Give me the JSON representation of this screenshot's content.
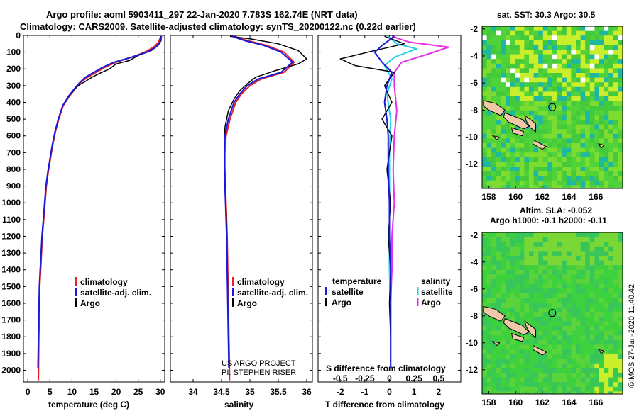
{
  "header": {
    "line1": "Argo profile: aoml 5903411_297 22-Jan-2020 7.783S 162.74E (NRT data)",
    "line2": "Climatology: CARS2009. Satellite-adjusted climatology: synTS_20200122.nc (0.22d earlier)"
  },
  "colors": {
    "climatology": "#e8202a",
    "satellite": "#1a1adc",
    "argo": "#000000",
    "sat_salinity": "#22d4e6",
    "argo_salinity": "#e52ee5",
    "ocean_green": "#3ed13e",
    "land": "#f0c8a8"
  },
  "chart_data": [
    {
      "type": "line",
      "title": "",
      "xlabel": "temperature (deg C)",
      "ylabel": "",
      "xlim": [
        -1,
        31
      ],
      "ylim": [
        2070,
        0
      ],
      "xticks": [
        "0",
        "5",
        "10",
        "15",
        "20",
        "25",
        "30"
      ],
      "yticks": [
        "0",
        "100",
        "200",
        "300",
        "400",
        "500",
        "600",
        "700",
        "800",
        "900",
        "1000",
        "1100",
        "1200",
        "1300",
        "1400",
        "1500",
        "1600",
        "1700",
        "1800",
        "1900",
        "2000"
      ],
      "legend": [
        "climatology",
        "satellite-adj. clim.",
        "Argo"
      ],
      "series": [
        {
          "name": "climatology",
          "x": [
            30.1,
            29.6,
            28.5,
            26.5,
            23.5,
            20,
            17.5,
            15.5,
            13.5,
            12,
            11,
            9.5,
            8,
            7,
            6.2,
            5.6,
            5.1,
            4.6,
            4.2,
            3.9,
            3.6,
            3.3,
            3.1,
            2.9,
            2.7,
            2.6,
            2.5,
            2.4
          ],
          "y": [
            5,
            40,
            70,
            100,
            130,
            160,
            190,
            220,
            250,
            280,
            310,
            360,
            420,
            500,
            580,
            660,
            740,
            820,
            900,
            1000,
            1100,
            1200,
            1300,
            1400,
            1500,
            1650,
            1800,
            2060
          ]
        },
        {
          "name": "satellite-adj. clim.",
          "x": [
            30.3,
            29.9,
            29,
            27,
            23.5,
            19.5,
            17,
            15,
            13,
            11.8,
            10.8,
            9.3,
            7.9,
            6.9,
            6.1,
            5.5,
            5,
            4.5,
            4.1,
            3.8,
            3.5,
            3.2,
            3,
            2.8,
            2.6,
            2.5,
            2.4,
            2.3
          ],
          "y": [
            5,
            40,
            70,
            100,
            130,
            160,
            190,
            220,
            250,
            280,
            310,
            360,
            420,
            500,
            580,
            660,
            740,
            820,
            900,
            1000,
            1100,
            1200,
            1300,
            1400,
            1500,
            1650,
            1800,
            1990
          ]
        },
        {
          "name": "Argo",
          "x": [
            30.2,
            30.2,
            29.5,
            28,
            25,
            23,
            20,
            18.5,
            16,
            14.5,
            13,
            12,
            11,
            9.4,
            7.9,
            6.9,
            6.1,
            5.5,
            5,
            4.5,
            4.1,
            3.8,
            3.5,
            3.2,
            3,
            2.8,
            2.6,
            2.5,
            2.4,
            2.3
          ],
          "y": [
            5,
            30,
            60,
            90,
            120,
            150,
            170,
            200,
            230,
            250,
            275,
            290,
            310,
            360,
            420,
            500,
            580,
            660,
            740,
            820,
            900,
            1000,
            1100,
            1200,
            1300,
            1400,
            1500,
            1650,
            1800,
            1990
          ]
        }
      ]
    },
    {
      "type": "line",
      "title": "",
      "xlabel": "salinity",
      "ylabel": "",
      "xlim": [
        33.6,
        36.1
      ],
      "ylim": [
        2070,
        0
      ],
      "xticks": [
        "34",
        "34.5",
        "35",
        "35.5",
        "36"
      ],
      "legend": [
        "climatology",
        "satellite-adj. clim.",
        "Argo"
      ],
      "annotations": [
        "US ARGO PROJECT",
        "PI: STEPHEN RISER"
      ],
      "series": [
        {
          "name": "climatology",
          "x": [
            34.72,
            34.95,
            35.3,
            35.6,
            35.78,
            35.6,
            35.2,
            35.0,
            34.85,
            34.75,
            34.65,
            34.58,
            34.56,
            34.56,
            34.57,
            34.58,
            34.6,
            34.61,
            34.62,
            34.63,
            34.64,
            34.64
          ],
          "y": [
            5,
            30,
            60,
            100,
            160,
            220,
            260,
            300,
            350,
            400,
            500,
            600,
            700,
            800,
            900,
            1000,
            1200,
            1400,
            1600,
            1800,
            1950,
            2060
          ]
        },
        {
          "name": "satellite-adj. clim.",
          "x": [
            34.68,
            34.9,
            35.25,
            35.55,
            35.75,
            35.55,
            35.15,
            34.95,
            34.82,
            34.72,
            34.62,
            34.56,
            34.55,
            34.55,
            34.56,
            34.57,
            34.59,
            34.6,
            34.61,
            34.62,
            34.63
          ],
          "y": [
            5,
            30,
            60,
            100,
            160,
            220,
            260,
            300,
            350,
            400,
            500,
            600,
            700,
            800,
            900,
            1000,
            1200,
            1400,
            1600,
            1800,
            1990
          ]
        },
        {
          "name": "Argo",
          "x": [
            34.65,
            35.0,
            35.5,
            35.85,
            36.0,
            35.85,
            35.45,
            35.1,
            34.95,
            34.82,
            34.72,
            34.62,
            34.56,
            34.55,
            34.55,
            34.56,
            34.57,
            34.59,
            34.6,
            34.61,
            34.62,
            34.63
          ],
          "y": [
            5,
            20,
            50,
            90,
            140,
            170,
            210,
            250,
            290,
            330,
            380,
            450,
            550,
            650,
            750,
            850,
            950,
            1150,
            1350,
            1550,
            1800,
            1990
          ]
        }
      ]
    },
    {
      "type": "line",
      "title": "",
      "xlabel": "T difference from climatology",
      "xlabel2": "S difference from climatology",
      "ylabel": "",
      "xlim": [
        -2.9,
        2.9
      ],
      "ylim": [
        2070,
        0
      ],
      "xticks": [
        "-2",
        "-1",
        "0",
        "1",
        "2"
      ],
      "xticks2": [
        "-0.5",
        "-0.25",
        "0",
        "0.25",
        "0.5"
      ],
      "legend_groups": [
        {
          "heading": "temperature",
          "items": [
            "satellite",
            "Argo"
          ]
        },
        {
          "heading": "salinity",
          "items": [
            "satellite",
            "Argo"
          ]
        }
      ],
      "series": [
        {
          "name": "temperature satellite",
          "x": [
            0.2,
            -0.3,
            -0.6,
            -0.3,
            0.1,
            -0.1,
            -0.2,
            -0.1,
            -0.05,
            -0.05,
            0,
            0,
            0.05,
            0.05,
            0.05,
            0.05
          ],
          "y": [
            5,
            60,
            100,
            160,
            220,
            300,
            400,
            500,
            600,
            800,
            1000,
            1200,
            1400,
            1600,
            1800,
            1990
          ]
        },
        {
          "name": "temperature Argo",
          "x": [
            -0.2,
            0.6,
            -0.6,
            -2.0,
            -1.4,
            0.2,
            -0.2,
            0.1,
            -0.3,
            0.1,
            -0.1,
            0.05,
            -0.05,
            0.05,
            0,
            0.05,
            0.05
          ],
          "y": [
            5,
            50,
            90,
            140,
            180,
            220,
            300,
            400,
            500,
            600,
            800,
            1000,
            1200,
            1400,
            1600,
            1800,
            1990
          ]
        },
        {
          "name": "salinity satellite",
          "x": [
            -0.05,
            0.3,
            1.1,
            0.2,
            -0.2,
            0.1,
            -0.1,
            0.05,
            0,
            0,
            0,
            0,
            0.05,
            0.05,
            0.05
          ],
          "y": [
            5,
            50,
            80,
            130,
            180,
            260,
            350,
            500,
            700,
            900,
            1200,
            1400,
            1600,
            1800,
            1990
          ]
        },
        {
          "name": "salinity Argo",
          "x": [
            0.1,
            0.8,
            2.4,
            1.6,
            0.5,
            0.2,
            0.2,
            0.3,
            0.2,
            0.15,
            0.2,
            0.1,
            0.1,
            0.05,
            0.05,
            0.05
          ],
          "y": [
            5,
            40,
            70,
            110,
            160,
            220,
            300,
            450,
            600,
            800,
            1000,
            1200,
            1400,
            1600,
            1800,
            1990
          ]
        }
      ]
    },
    {
      "type": "heatmap",
      "title": "sat. SST: 30.3 Argo: 30.5",
      "xticks": [
        "158",
        "160",
        "162",
        "164",
        "166"
      ],
      "yticks": [
        "-2",
        "-4",
        "-6",
        "-8",
        "-10",
        "-12"
      ],
      "xlim": [
        157.5,
        168
      ],
      "ylim": [
        -13.8,
        -1.8
      ]
    },
    {
      "type": "heatmap",
      "title": "Altim. SLA: -0.052",
      "subtitle": "Argo h1000: -0.1 h2000: -0.11",
      "xticks": [
        "158",
        "160",
        "162",
        "164",
        "166"
      ],
      "yticks": [
        "-2",
        "-4",
        "-6",
        "-8",
        "-10",
        "-12"
      ],
      "xlim": [
        157.5,
        168
      ],
      "ylim": [
        -13.8,
        -1.8
      ]
    }
  ],
  "credit": "©IMOS 27-Jan-2020 11:40:42"
}
